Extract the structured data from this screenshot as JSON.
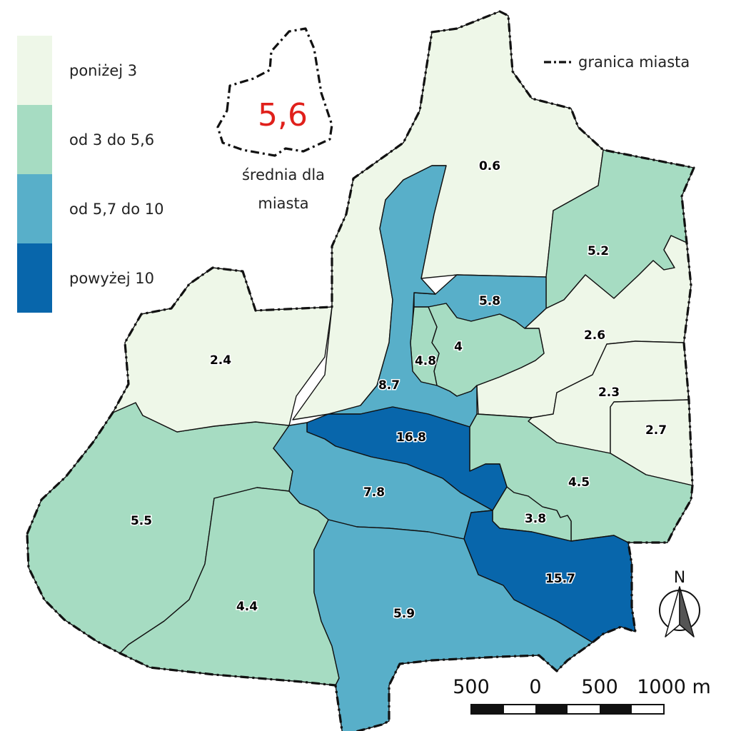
{
  "legend": {
    "items": [
      {
        "label": "poniżej 3",
        "color": "#eef7e8"
      },
      {
        "label": "od 3 do 5,6",
        "color": "#a6dcc2"
      },
      {
        "label": "od 5,7 do 10",
        "color": "#58afc9"
      },
      {
        "label": "powyżej 10",
        "color": "#0866ab"
      }
    ],
    "boundary_label": "granica miasta"
  },
  "city_average": {
    "value": "5,6",
    "caption_line1": "średnia dla",
    "caption_line2": "miasta",
    "value_color": "#e0201b"
  },
  "districts": [
    {
      "id": "d-0-6",
      "label": "0.6",
      "value": 0.6
    },
    {
      "id": "d-5-2",
      "label": "5.2",
      "value": 5.2
    },
    {
      "id": "d-2-6",
      "label": "2.6",
      "value": 2.6
    },
    {
      "id": "d-2-3",
      "label": "2.3",
      "value": 2.3
    },
    {
      "id": "d-2-7",
      "label": "2.7",
      "value": 2.7
    },
    {
      "id": "d-2-4",
      "label": "2.4",
      "value": 2.4
    },
    {
      "id": "d-5-8",
      "label": "5.8",
      "value": 5.8
    },
    {
      "id": "d-4",
      "label": "4",
      "value": 4
    },
    {
      "id": "d-4-8",
      "label": "4.8",
      "value": 4.8
    },
    {
      "id": "d-8-7",
      "label": "8.7",
      "value": 8.7
    },
    {
      "id": "d-16-8",
      "label": "16.8",
      "value": 16.8
    },
    {
      "id": "d-7-8",
      "label": "7.8",
      "value": 7.8
    },
    {
      "id": "d-4-5",
      "label": "4.5",
      "value": 4.5
    },
    {
      "id": "d-3-8",
      "label": "3.8",
      "value": 3.8
    },
    {
      "id": "d-15-7",
      "label": "15.7",
      "value": 15.7
    },
    {
      "id": "d-5-5",
      "label": "5.5",
      "value": 5.5
    },
    {
      "id": "d-4-4",
      "label": "4.4",
      "value": 4.4
    },
    {
      "id": "d-5-9",
      "label": "5.9",
      "value": 5.9
    }
  ],
  "north_arrow": {
    "label": "N",
    "icon": "north-arrow-icon"
  },
  "scale_bar": {
    "labels": [
      "500",
      "0",
      "500",
      "1000 m"
    ]
  }
}
